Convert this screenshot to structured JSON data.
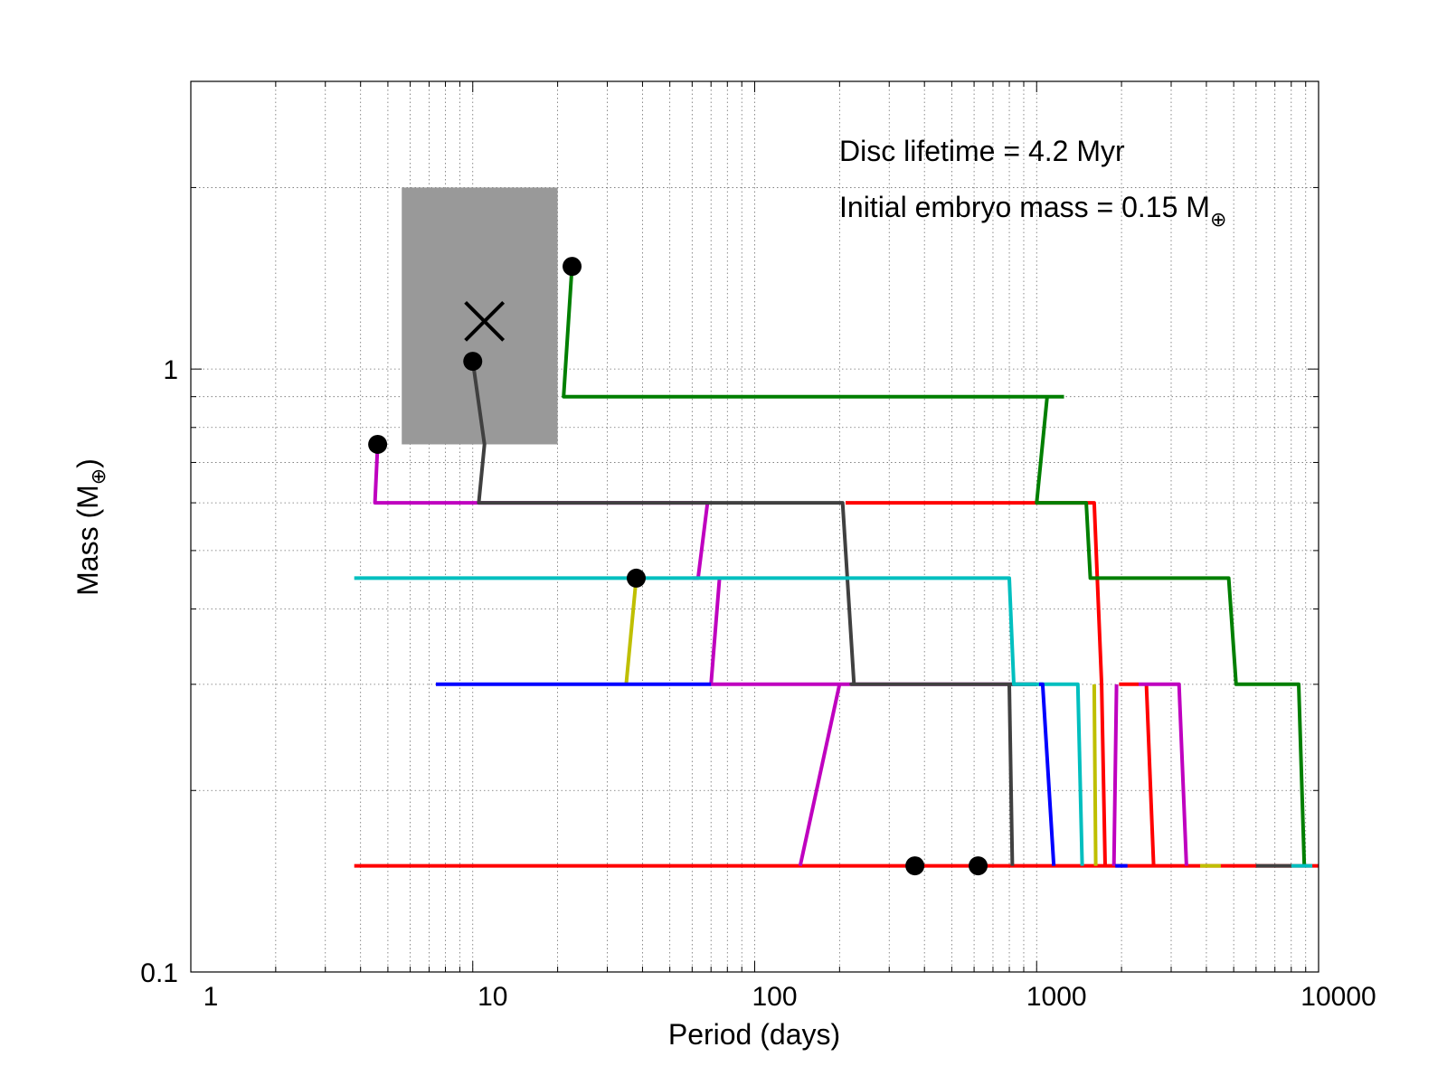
{
  "chart_data": {
    "type": "line",
    "xlabel": "Period (days)",
    "ylabel": {
      "main": "Mass (M",
      "sub": "⊕",
      "end": ")"
    },
    "x_scale": "log",
    "y_scale": "log",
    "xlim": [
      1,
      10000
    ],
    "ylim": [
      0.1,
      3
    ],
    "grid": true,
    "x_ticks": [
      {
        "value": 1,
        "label": "1"
      },
      {
        "value": 10,
        "label": "10"
      },
      {
        "value": 100,
        "label": "100"
      },
      {
        "value": 1000,
        "label": "1000"
      },
      {
        "value": 10000,
        "label": "10000"
      }
    ],
    "y_ticks": [
      {
        "value": 0.1,
        "label": "0.1"
      },
      {
        "value": 1,
        "label": "1"
      }
    ],
    "annotations": [
      {
        "id": "lifetime",
        "text": "Disc lifetime = 4.2 Myr"
      },
      {
        "id": "embryo",
        "text": "Initial embryo mass = 0.15 M",
        "sub": "⊕"
      }
    ],
    "observed_region": {
      "x": [
        5.6,
        20
      ],
      "y": [
        0.75,
        2
      ],
      "color": "#999999"
    },
    "observed_planet": {
      "x": 11,
      "y": 1.2,
      "marker": "x"
    },
    "final_planets": [
      {
        "x": 4.6,
        "y": 0.75
      },
      {
        "x": 10,
        "y": 1.03
      },
      {
        "x": 22.5,
        "y": 1.48
      },
      {
        "x": 38,
        "y": 0.45
      },
      {
        "x": 370,
        "y": 0.15
      },
      {
        "x": 620,
        "y": 0.15
      }
    ],
    "series": [
      {
        "color": "#ff0000",
        "x": [
          3.8,
          10000
        ],
        "y": [
          0.15,
          0.15
        ]
      },
      {
        "color": "#ff0000",
        "x": [
          210,
          1000,
          1600,
          1700,
          1750
        ],
        "y": [
          0.6,
          0.6,
          0.6,
          0.3,
          0.15
        ]
      },
      {
        "color": "#ff0000",
        "x": [
          2450,
          2600
        ],
        "y": [
          0.3,
          0.15
        ]
      },
      {
        "color": "#ff0000",
        "x": [
          1960,
          2300
        ],
        "y": [
          0.3,
          0.3
        ]
      },
      {
        "color": "#bf00bf",
        "x": [
          4.6,
          4.5,
          68,
          63,
          60
        ],
        "y": [
          0.75,
          0.6,
          0.6,
          0.45,
          0.45
        ]
      },
      {
        "color": "#bf00bf",
        "x": [
          75,
          70,
          1000
        ],
        "y": [
          0.45,
          0.3,
          0.3
        ]
      },
      {
        "color": "#bf00bf",
        "x": [
          200,
          145
        ],
        "y": [
          0.3,
          0.15
        ]
      },
      {
        "color": "#bf00bf",
        "x": [
          1920,
          1880
        ],
        "y": [
          0.3,
          0.15
        ]
      },
      {
        "color": "#bf00bf",
        "x": [
          2300,
          3200,
          3400
        ],
        "y": [
          0.3,
          0.3,
          0.15
        ]
      },
      {
        "color": "#404040",
        "x": [
          10,
          11,
          10.5,
          70,
          205,
          225,
          220,
          1000
        ],
        "y": [
          1.03,
          0.75,
          0.6,
          0.6,
          0.6,
          0.3,
          0.3,
          0.3
        ]
      },
      {
        "color": "#404040",
        "x": [
          800,
          820
        ],
        "y": [
          0.3,
          0.15
        ]
      },
      {
        "color": "#404040",
        "x": [
          6000,
          8000
        ],
        "y": [
          0.15,
          0.15
        ]
      },
      {
        "color": "#007f00",
        "x": [
          22.5,
          21,
          1250
        ],
        "y": [
          1.48,
          0.9,
          0.9
        ]
      },
      {
        "color": "#007f00",
        "x": [
          1090,
          1000,
          1500,
          1550,
          4800,
          5100,
          8500,
          8900
        ],
        "y": [
          0.9,
          0.6,
          0.6,
          0.45,
          0.45,
          0.3,
          0.3,
          0.15
        ]
      },
      {
        "color": "#00bfbf",
        "x": [
          3.8,
          800,
          830,
          1400,
          1450
        ],
        "y": [
          0.45,
          0.45,
          0.3,
          0.3,
          0.15
        ]
      },
      {
        "color": "#00bfbf",
        "x": [
          8000,
          9500
        ],
        "y": [
          0.15,
          0.15
        ]
      },
      {
        "color": "#bfbf00",
        "x": [
          38,
          35
        ],
        "y": [
          0.45,
          0.3
        ]
      },
      {
        "color": "#bfbf00",
        "x": [
          1600,
          1620
        ],
        "y": [
          0.3,
          0.15
        ]
      },
      {
        "color": "#bfbf00",
        "x": [
          3800,
          4500
        ],
        "y": [
          0.15,
          0.15
        ]
      },
      {
        "color": "#0000ff",
        "x": [
          7.4,
          70
        ],
        "y": [
          0.3,
          0.3
        ]
      },
      {
        "color": "#0000ff",
        "x": [
          1020,
          1050,
          1150
        ],
        "y": [
          0.3,
          0.3,
          0.15
        ]
      },
      {
        "color": "#0000ff",
        "x": [
          1900,
          2100
        ],
        "y": [
          0.15,
          0.15
        ]
      }
    ]
  }
}
